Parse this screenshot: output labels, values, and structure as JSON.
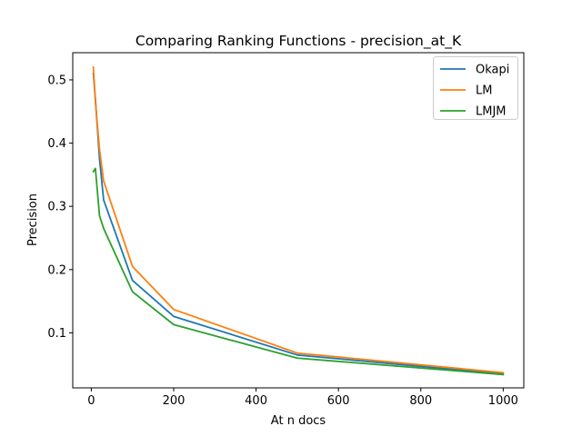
{
  "chart_data": {
    "type": "line",
    "title": "Comparing Ranking Functions - precision_at_K",
    "xlabel": "At n docs",
    "ylabel": "Precision",
    "xlim": [
      -45,
      1050
    ],
    "ylim": [
      0.013,
      0.543
    ],
    "xticks": [
      0,
      200,
      400,
      600,
      800,
      1000
    ],
    "yticks": [
      0.1,
      0.2,
      0.3,
      0.4,
      0.5
    ],
    "grid": false,
    "legend_position": "top-right",
    "x": [
      5,
      10,
      20,
      30,
      100,
      200,
      500,
      1000
    ],
    "series": [
      {
        "name": "Okapi",
        "color": "#1f77b4",
        "values": [
          0.51,
          0.47,
          0.375,
          0.31,
          0.183,
          0.126,
          0.065,
          0.035
        ]
      },
      {
        "name": "LM",
        "color": "#ff7f0e",
        "values": [
          0.52,
          0.465,
          0.39,
          0.34,
          0.205,
          0.137,
          0.068,
          0.037
        ]
      },
      {
        "name": "LMJM",
        "color": "#2ca02c",
        "values": [
          0.355,
          0.36,
          0.285,
          0.265,
          0.165,
          0.113,
          0.06,
          0.034
        ]
      }
    ]
  }
}
